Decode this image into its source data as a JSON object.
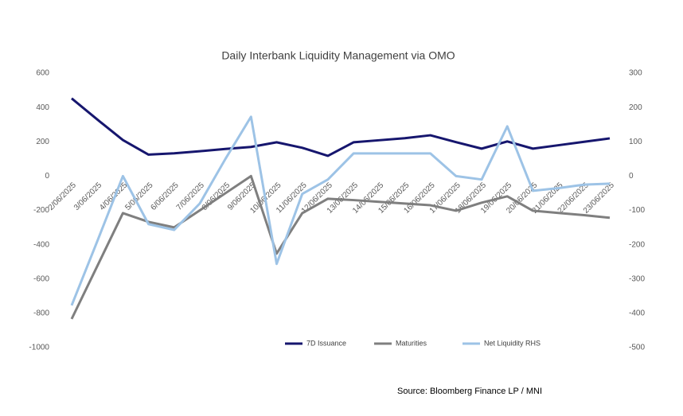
{
  "chart_data": {
    "type": "line",
    "title": "Daily Interbank Liquidity Management via OMO",
    "annotations": [
      "Source: Bloomberg Finance LP / MNI"
    ],
    "categories": [
      "2/06/2025",
      "3/06/2025",
      "4/06/2025",
      "5/06/2025",
      "6/06/2025",
      "7/06/2025",
      "8/06/2025",
      "9/06/2025",
      "10/06/2025",
      "11/06/2025",
      "12/06/2025",
      "13/06/2025",
      "14/06/2025",
      "15/06/2025",
      "16/06/2025",
      "17/06/2025",
      "18/06/2025",
      "19/06/2025",
      "20/06/2025",
      "21/06/2025",
      "22/06/2025",
      "23/06/2025"
    ],
    "series": [
      {
        "name": "7D Issuance",
        "color": "#16166e",
        "values": [
          453,
          330,
          210,
          125,
          133,
          145,
          158,
          170,
          197,
          165,
          118,
          197,
          209,
          221,
          238,
          198,
          160,
          202,
          160,
          180,
          200,
          220
        ]
      },
      {
        "name": "Maturities",
        "color": "#7f7f7f",
        "values": [
          -833,
          -525,
          -216,
          -267,
          -299,
          -200,
          -100,
          0,
          -452,
          -216,
          -132,
          -140,
          -150,
          -160,
          -170,
          -202,
          -155,
          -118,
          -202,
          -215,
          -228,
          -243
        ]
      },
      {
        "name": "Net Liquidity RHS",
        "color": "#9dc3e6",
        "axis": "y2",
        "values": [
          -377,
          -190,
          0,
          -140,
          -157,
          -80,
          50,
          173,
          -256,
          -52,
          -10,
          66,
          66,
          66,
          66,
          0,
          -10,
          145,
          -43,
          -35,
          -25,
          -22
        ]
      }
    ],
    "ylim": [
      -1000,
      600
    ],
    "yticks": [
      600,
      400,
      200,
      0,
      -200,
      -400,
      -600,
      -800,
      -1000
    ],
    "y2lim": [
      -500,
      300
    ],
    "y2ticks": [
      300,
      200,
      100,
      0,
      -100,
      -200,
      -300,
      -400,
      -500
    ],
    "grid": false,
    "legend": "bottom"
  }
}
